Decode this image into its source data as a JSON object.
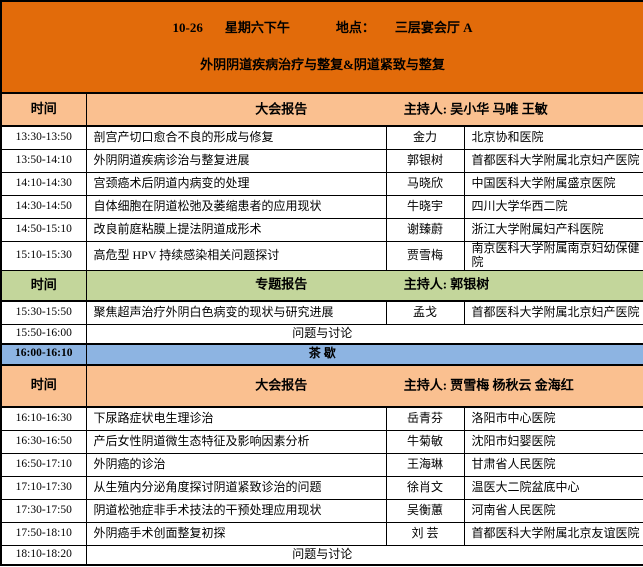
{
  "colors": {
    "banner_orange": "#E26B0A",
    "header_salmon": "#FAC090",
    "header_green": "#C3D69B",
    "tea_blue": "#8DB4E2",
    "border": "#000000",
    "text": "#000000"
  },
  "banner": {
    "date": "10-26",
    "day": "星期六下午",
    "location_label": "地点：",
    "venue": "三层宴会厅 A",
    "title": "外阴阴道疾病治疗与整复&阴道紧致与整复"
  },
  "headers": {
    "h1": {
      "time_label": "时间",
      "session": "大会报告",
      "chairs": "主持人: 吴小华 马唯  王敏"
    },
    "h2": {
      "time_label": "时间",
      "session": "专题报告",
      "chairs": "主持人:  郭银树"
    },
    "h3": {
      "time_label": "时间",
      "session": "大会报告",
      "chairs": "主持人:  贾雪梅  杨秋云  金海红"
    }
  },
  "session1": {
    "rows": [
      {
        "time": "13:30-13:50",
        "topic": "剖宫产切口愈合不良的形成与修复",
        "speaker": "金力",
        "hospital": "北京协和医院"
      },
      {
        "time": "13:50-14:10",
        "topic": "外阴阴道疾病诊治与整复进展",
        "speaker": "郭银树",
        "hospital": "首都医科大学附属北京妇产医院"
      },
      {
        "time": "14:10-14:30",
        "topic": "宫颈癌术后阴道内病变的处理",
        "speaker": "马晓欣",
        "hospital": "中国医科大学附属盛京医院"
      },
      {
        "time": "14:30-14:50",
        "topic": "自体细胞在阴道松弛及萎缩患者的应用现状",
        "speaker": "牛晓宇",
        "hospital": "四川大学华西二院"
      },
      {
        "time": "14:50-15:10",
        "topic": "改良前庭粘膜上提法阴道成形术",
        "speaker": "谢臻蔚",
        "hospital": "浙江大学附属妇产科医院"
      },
      {
        "time": "15:10-15:30",
        "topic": "高危型 HPV 持续感染相关问题探讨",
        "speaker": "贾雪梅",
        "hospital": "南京医科大学附属南京妇幼保健院"
      }
    ]
  },
  "session2": {
    "rows": [
      {
        "time": "15:30-15:50",
        "topic": "聚焦超声治疗外阴白色病变的现状与研究进展",
        "speaker": "孟戈",
        "hospital": "首都医科大学附属北京妇产医院"
      }
    ],
    "discussion": {
      "time": "15:50-16:00",
      "label": "问题与讨论"
    }
  },
  "tea_break": {
    "time": "16:00-16:10",
    "label": "茶 歇"
  },
  "session3": {
    "rows": [
      {
        "time": "16:10-16:30",
        "topic": "下尿路症状电生理诊治",
        "speaker": "岳青芬",
        "hospital": "洛阳市中心医院"
      },
      {
        "time": "16:30-16:50",
        "topic": "产后女性阴道微生态特征及影响因素分析",
        "speaker": "牛菊敏",
        "hospital": "沈阳市妇婴医院"
      },
      {
        "time": "16:50-17:10",
        "topic": "外阴癌的诊治",
        "speaker": "王海琳",
        "hospital": "甘肃省人民医院"
      },
      {
        "time": "17:10-17:30",
        "topic": "从生殖内分泌角度探讨阴道紧致诊治的问题",
        "speaker": "徐肖文",
        "hospital": "温医大二院盆底中心"
      },
      {
        "time": "17:30-17:50",
        "topic": "阴道松弛症非手术技法的干预处理应用现状",
        "speaker": "吴衡蕙",
        "hospital": "河南省人民医院"
      },
      {
        "time": "17:50-18:10",
        "topic": "外阴癌手术创面整复初探",
        "speaker": "刘 芸",
        "hospital": "首都医科大学附属北京友谊医院"
      }
    ],
    "discussion": {
      "time": "18:10-18:20",
      "label": "问题与讨论"
    }
  }
}
